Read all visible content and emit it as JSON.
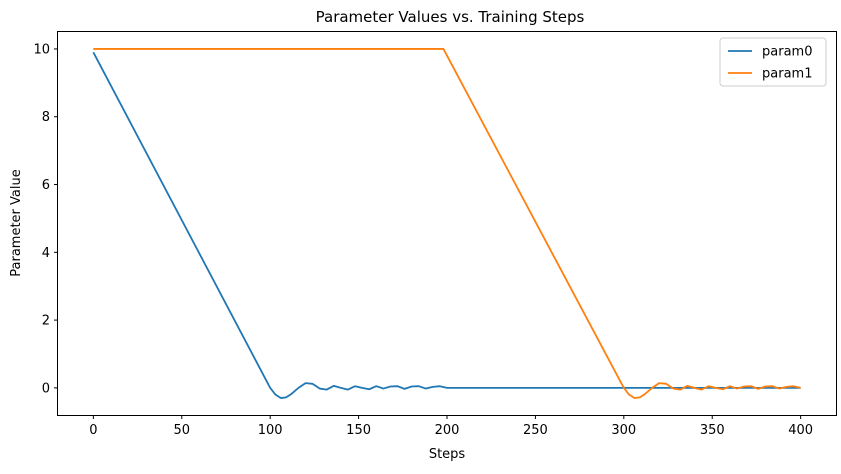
{
  "chart_data": {
    "type": "line",
    "title": "Parameter Values vs. Training Steps",
    "xlabel": "Steps",
    "ylabel": "Parameter Value",
    "xlim": [
      -20,
      420
    ],
    "ylim": [
      -0.8,
      10.5
    ],
    "xticks": [
      0,
      50,
      100,
      150,
      200,
      250,
      300,
      350,
      400
    ],
    "yticks": [
      0,
      2,
      4,
      6,
      8,
      10
    ],
    "grid": false,
    "legend": "top-right",
    "series": [
      {
        "name": "param0",
        "color": "#1f77b4",
        "x": [
          0,
          100,
          103,
          106,
          109,
          112,
          116,
          120,
          124,
          128,
          132,
          136,
          140,
          144,
          148,
          152,
          156,
          160,
          164,
          168,
          172,
          176,
          180,
          184,
          188,
          192,
          196,
          200,
          400
        ],
        "y": [
          9.9,
          0.0,
          -0.2,
          -0.3,
          -0.28,
          -0.18,
          0.0,
          0.14,
          0.12,
          -0.02,
          -0.05,
          0.06,
          0.0,
          -0.05,
          0.05,
          0.0,
          -0.04,
          0.05,
          -0.02,
          0.04,
          0.05,
          -0.03,
          0.04,
          0.05,
          -0.02,
          0.03,
          0.05,
          0.0,
          0.0
        ]
      },
      {
        "name": "param1",
        "color": "#ff7f0e",
        "x": [
          0,
          198,
          300,
          303,
          306,
          309,
          312,
          316,
          320,
          324,
          328,
          332,
          336,
          340,
          344,
          348,
          352,
          356,
          360,
          364,
          368,
          372,
          376,
          380,
          384,
          388,
          392,
          396,
          400
        ],
        "y": [
          10.0,
          10.0,
          0.0,
          -0.2,
          -0.3,
          -0.28,
          -0.18,
          0.0,
          0.14,
          0.12,
          -0.02,
          -0.05,
          0.06,
          0.0,
          -0.05,
          0.05,
          0.0,
          -0.04,
          0.05,
          -0.02,
          0.04,
          0.05,
          -0.03,
          0.04,
          0.05,
          -0.02,
          0.03,
          0.05,
          0.0
        ]
      }
    ]
  }
}
